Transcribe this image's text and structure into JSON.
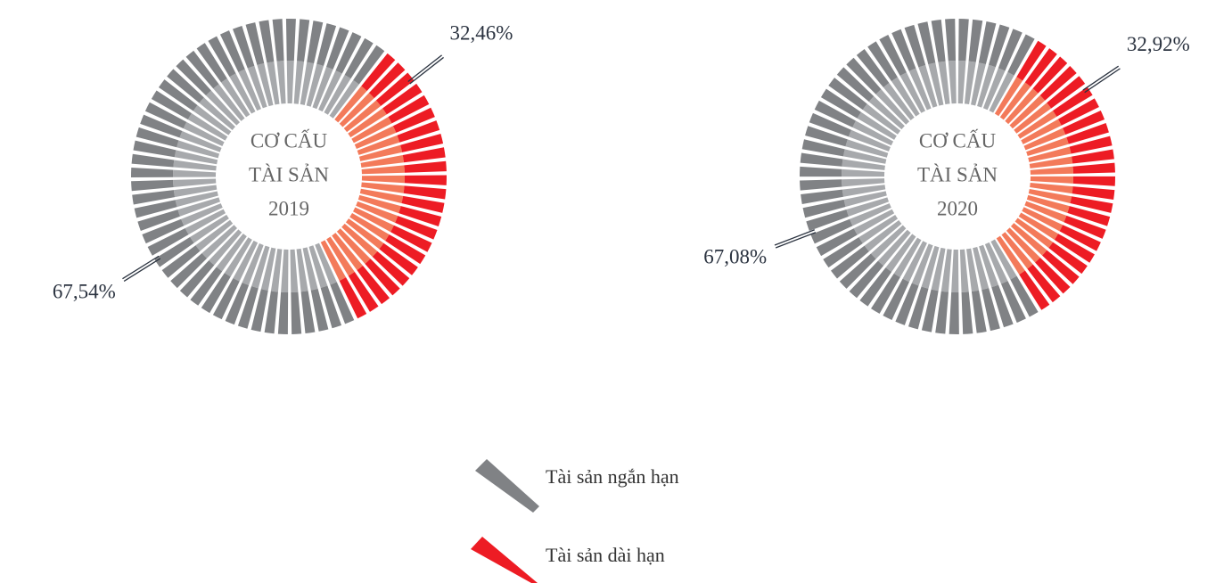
{
  "chart_data": [
    {
      "type": "donut",
      "center_text": [
        "CƠ CẤU",
        "TÀI SẢN",
        "2019"
      ],
      "values": [
        67.54,
        32.46
      ],
      "value_labels": [
        "67,54%",
        "32,46%"
      ],
      "colors": [
        [
          "#808285",
          "#a7a9ac"
        ],
        [
          "#ed1c24",
          "#f37a5a"
        ]
      ]
    },
    {
      "type": "donut",
      "center_text": [
        "CƠ CẤU",
        "TÀI SẢN",
        "2020"
      ],
      "values": [
        67.08,
        32.92
      ],
      "value_labels": [
        "67,08%",
        "32,92%"
      ],
      "colors": [
        [
          "#808285",
          "#a7a9ac"
        ],
        [
          "#ed1c24",
          "#f37a5a"
        ]
      ]
    }
  ],
  "legend": {
    "items": [
      {
        "name": "Tài sản ngắn hạn",
        "color": "#808285"
      },
      {
        "name": "Tài sản dài hạn",
        "color": "#ed1c24"
      }
    ]
  }
}
